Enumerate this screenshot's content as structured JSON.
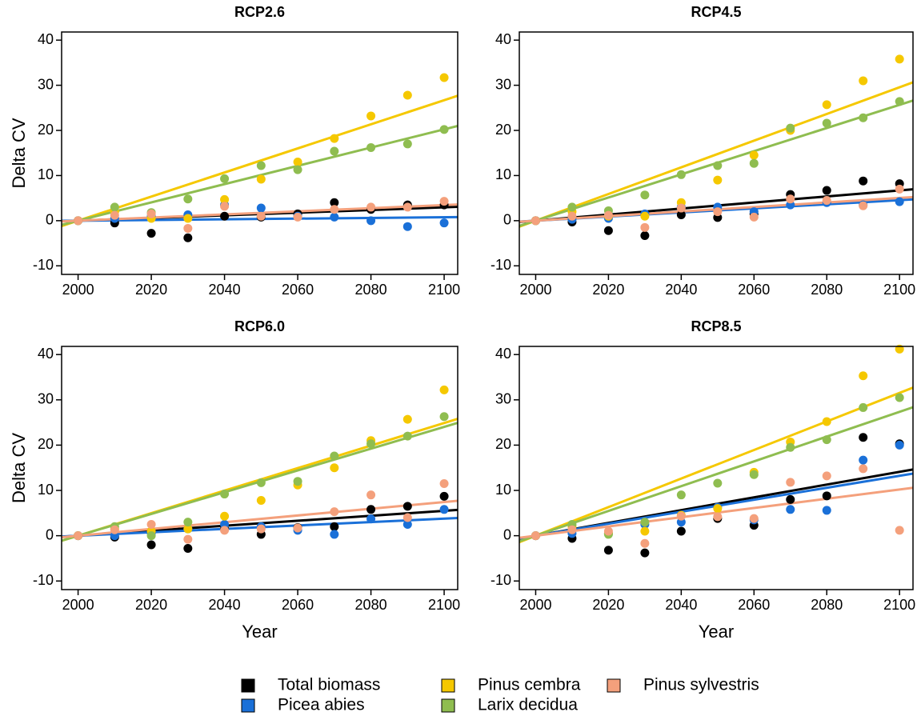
{
  "chart_data": [
    {
      "type": "scatter",
      "title": "RCP2.6",
      "y_label": "Delta CV",
      "x": [
        2000,
        2010,
        2020,
        2030,
        2040,
        2050,
        2060,
        2070,
        2080,
        2090,
        2100
      ],
      "xlim": [
        1995.5,
        2103.7
      ],
      "ylim": [
        -11.9,
        41.8
      ],
      "xticks": [
        2000,
        2020,
        2040,
        2060,
        2080,
        2100
      ],
      "yticks": [
        -10,
        0,
        10,
        20,
        30,
        40
      ],
      "series": [
        {
          "values": [
            0,
            -0.5,
            -2.8,
            -3.8,
            1,
            0.8,
            1.5,
            4,
            2.5,
            3.5,
            3.5
          ]
        },
        {
          "values": [
            0,
            0.5,
            1,
            1.3,
            3.5,
            2.8,
            1,
            0.8,
            0,
            -1.3,
            -0.5
          ]
        },
        {
          "values": [
            0,
            2,
            0.5,
            0.5,
            4.7,
            9.2,
            13,
            18.2,
            23.2,
            27.8,
            31.7
          ]
        },
        {
          "values": [
            0,
            3,
            1.8,
            4.8,
            9.3,
            12.2,
            11.3,
            15.4,
            16.2,
            17,
            20.2
          ]
        },
        {
          "values": [
            0,
            1.2,
            1.5,
            -1.7,
            3.2,
            1,
            0.8,
            2.5,
            3,
            3,
            4.3
          ]
        }
      ]
    },
    {
      "type": "scatter",
      "title": "RCP4.5",
      "x": [
        2000,
        2010,
        2020,
        2030,
        2040,
        2050,
        2060,
        2070,
        2080,
        2090,
        2100
      ],
      "xlim": [
        1995.5,
        2103.7
      ],
      "ylim": [
        -11.9,
        41.8
      ],
      "xticks": [
        2000,
        2020,
        2040,
        2060,
        2080,
        2100
      ],
      "yticks": [
        -10,
        0,
        10,
        20,
        30,
        40
      ],
      "series": [
        {
          "values": [
            0,
            -0.3,
            -2.2,
            -3.3,
            1.3,
            0.7,
            1.5,
            5.8,
            6.7,
            8.8,
            8.2
          ]
        },
        {
          "values": [
            0,
            0.3,
            0.5,
            1.5,
            3,
            3,
            2,
            3.5,
            4,
            3.5,
            4.2
          ]
        },
        {
          "values": [
            0,
            2,
            1,
            1,
            4,
            9,
            14.5,
            20,
            25.7,
            31,
            35.8
          ]
        },
        {
          "values": [
            0,
            3,
            2.2,
            5.7,
            10.2,
            12.2,
            12.7,
            20.5,
            21.6,
            22.8,
            26.4
          ]
        },
        {
          "values": [
            0,
            1,
            1.2,
            -1.5,
            2.8,
            2,
            0.8,
            4.8,
            4.5,
            3.3,
            7
          ]
        }
      ]
    },
    {
      "type": "scatter",
      "title": "RCP6.0",
      "y_label": "Delta CV",
      "x_label": "Year",
      "x": [
        2000,
        2010,
        2020,
        2030,
        2040,
        2050,
        2060,
        2070,
        2080,
        2090,
        2100
      ],
      "xlim": [
        1995.5,
        2103.7
      ],
      "ylim": [
        -11.9,
        41.8
      ],
      "xticks": [
        2000,
        2020,
        2040,
        2060,
        2080,
        2100
      ],
      "yticks": [
        -10,
        0,
        10,
        20,
        30,
        40
      ],
      "series": [
        {
          "values": [
            0,
            -0.3,
            -2,
            -2.8,
            1.5,
            0.3,
            1.8,
            2,
            5.8,
            6.5,
            8.7
          ]
        },
        {
          "values": [
            0,
            0,
            0.5,
            1.5,
            2.5,
            2,
            1.2,
            0.3,
            3.7,
            2.5,
            5.8
          ]
        },
        {
          "values": [
            0,
            1.5,
            1,
            1.5,
            4.3,
            7.8,
            11.2,
            15,
            21,
            25.7,
            32.2
          ]
        },
        {
          "values": [
            0,
            2,
            0,
            3,
            9.2,
            11.7,
            12,
            17.6,
            20.3,
            22,
            26.3
          ]
        },
        {
          "values": [
            0,
            1.3,
            2.5,
            -0.8,
            1.2,
            1.5,
            1.7,
            5.3,
            9,
            4,
            11.5
          ]
        }
      ]
    },
    {
      "type": "scatter",
      "title": "RCP8.5",
      "x_label": "Year",
      "x": [
        2000,
        2010,
        2020,
        2030,
        2040,
        2050,
        2060,
        2070,
        2080,
        2090,
        2100
      ],
      "xlim": [
        1995.5,
        2103.7
      ],
      "ylim": [
        -11.9,
        41.8
      ],
      "xticks": [
        2000,
        2020,
        2040,
        2060,
        2080,
        2100
      ],
      "yticks": [
        -10,
        0,
        10,
        20,
        30,
        40
      ],
      "series": [
        {
          "values": [
            0,
            -0.6,
            -3.2,
            -3.8,
            1,
            3.8,
            2.3,
            8,
            8.8,
            21.7,
            20.3
          ]
        },
        {
          "values": [
            0,
            0.5,
            0.5,
            2.5,
            3,
            6.3,
            3.5,
            5.8,
            5.6,
            16.7,
            20
          ]
        },
        {
          "values": [
            0,
            2,
            0.5,
            1,
            4.5,
            6,
            14,
            20.7,
            25.2,
            35.3,
            41.2
          ]
        },
        {
          "values": [
            0,
            2.5,
            0.3,
            3,
            9,
            11.6,
            13.5,
            19.5,
            21.2,
            28.3,
            30.5
          ]
        },
        {
          "values": [
            0,
            1.3,
            1,
            -1.7,
            4.3,
            4.2,
            3.8,
            11.8,
            13.2,
            14.8,
            1.2
          ]
        }
      ]
    }
  ],
  "legend": [
    {
      "name": "Total biomass",
      "color": "#000000"
    },
    {
      "name": "Picea abies",
      "color": "#1a70d8"
    },
    {
      "name": "Pinus cembra",
      "color": "#f5c800"
    },
    {
      "name": "Larix decidua",
      "color": "#8fbd50"
    },
    {
      "name": "Pinus sylvestris",
      "color": "#f4a07c"
    }
  ]
}
